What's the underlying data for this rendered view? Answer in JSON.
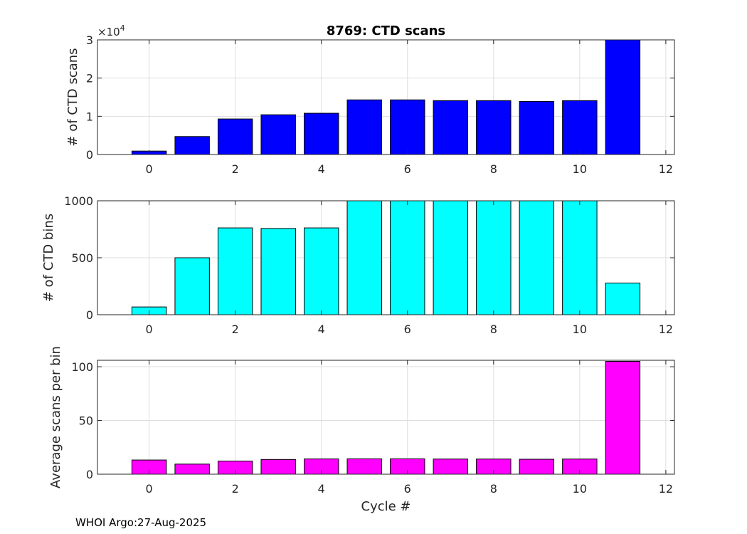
{
  "title": "8769: CTD scans",
  "xlabel": "Cycle #",
  "footer": "WHOI Argo:27-Aug-2025",
  "chart_data": [
    {
      "type": "bar",
      "title": "8769: CTD scans",
      "ylabel": "# of CTD scans",
      "exponent_label": "×10",
      "exponent_power": "4",
      "color": "#0000ff",
      "x": [
        0,
        1,
        2,
        3,
        4,
        5,
        6,
        7,
        8,
        9,
        10,
        11
      ],
      "values": [
        900,
        4700,
        9300,
        10400,
        10800,
        14300,
        14300,
        14100,
        14100,
        13900,
        14100,
        30000
      ],
      "xlim": [
        -1.2,
        12.2
      ],
      "ylim": [
        0,
        30000
      ],
      "xticks": [
        0,
        2,
        4,
        6,
        8,
        10,
        12
      ],
      "xticklabels": [
        "0",
        "2",
        "4",
        "6",
        "8",
        "10",
        "12"
      ],
      "yticks": [
        0,
        10000,
        20000,
        30000
      ],
      "yticklabels": [
        "0",
        "1",
        "2",
        "3"
      ],
      "grid": true
    },
    {
      "type": "bar",
      "ylabel": "# of CTD bins",
      "color": "#00ffff",
      "x": [
        0,
        1,
        2,
        3,
        4,
        5,
        6,
        7,
        8,
        9,
        10,
        11
      ],
      "values": [
        68,
        500,
        762,
        757,
        762,
        1000,
        1000,
        1000,
        1000,
        1000,
        1000,
        278
      ],
      "xlim": [
        -1.2,
        12.2
      ],
      "ylim": [
        0,
        1000
      ],
      "xticks": [
        0,
        2,
        4,
        6,
        8,
        10,
        12
      ],
      "xticklabels": [
        "0",
        "2",
        "4",
        "6",
        "8",
        "10",
        "12"
      ],
      "yticks": [
        0,
        500,
        1000
      ],
      "yticklabels": [
        "0",
        "500",
        "1000"
      ],
      "grid": true
    },
    {
      "type": "bar",
      "ylabel": "Average scans per bin",
      "xlabel": "Cycle #",
      "color": "#ff00ff",
      "x": [
        0,
        1,
        2,
        3,
        4,
        5,
        6,
        7,
        8,
        9,
        10,
        11
      ],
      "values": [
        13.2,
        9.4,
        12.2,
        13.7,
        14.2,
        14.3,
        14.3,
        14.1,
        14.1,
        13.9,
        14.1,
        105
      ],
      "xlim": [
        -1.2,
        12.2
      ],
      "ylim": [
        0,
        106
      ],
      "xticks": [
        0,
        2,
        4,
        6,
        8,
        10,
        12
      ],
      "xticklabels": [
        "0",
        "2",
        "4",
        "6",
        "8",
        "10",
        "12"
      ],
      "yticks": [
        0,
        50,
        100
      ],
      "yticklabels": [
        "0",
        "50",
        "100"
      ],
      "grid": true
    }
  ]
}
